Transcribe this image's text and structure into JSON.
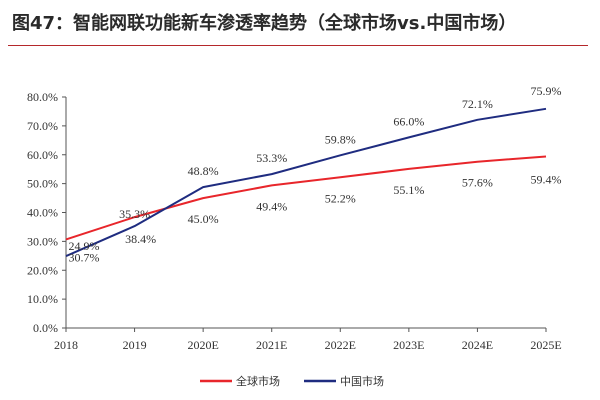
{
  "title": "图47：智能网联功能新车渗透率趋势（全球市场vs.中国市场）",
  "chart_data": {
    "type": "line",
    "title": "图47：智能网联功能新车渗透率趋势（全球市场vs.中国市场）",
    "categories": [
      "2018",
      "2019",
      "2020E",
      "2021E",
      "2022E",
      "2023E",
      "2024E",
      "2025E"
    ],
    "y_tick_labels": [
      "0.0%",
      "10.0%",
      "20.0%",
      "30.0%",
      "40.0%",
      "50.0%",
      "60.0%",
      "70.0%",
      "80.0%"
    ],
    "ylim": [
      0,
      80
    ],
    "unit": "%",
    "grid": false,
    "legend_position": "bottom",
    "series": [
      {
        "name": "全球市场",
        "color": "#e8262b",
        "values": [
          30.7,
          38.4,
          45.0,
          49.4,
          52.2,
          55.1,
          57.6,
          59.4
        ],
        "labels": [
          "30.7%",
          "38.4%",
          "45.0%",
          "49.4%",
          "52.2%",
          "55.1%",
          "57.6%",
          "59.4%"
        ]
      },
      {
        "name": "中国市场",
        "color": "#1f2c80",
        "values": [
          24.9,
          35.3,
          48.8,
          53.3,
          59.8,
          66.0,
          72.1,
          75.9
        ],
        "labels": [
          "24.9%",
          "35.3%",
          "48.8%",
          "53.3%",
          "59.8%",
          "66.0%",
          "72.1%",
          "75.9%"
        ]
      }
    ]
  }
}
